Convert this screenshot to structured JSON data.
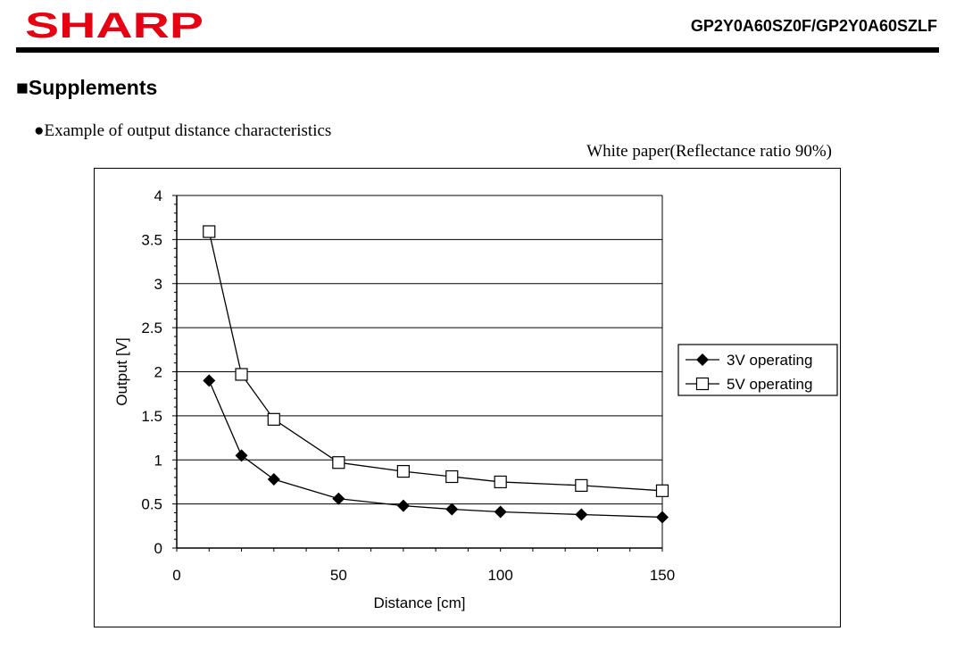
{
  "header": {
    "brand": "SHARP",
    "part_number": "GP2Y0A60SZ0F/GP2Y0A60SZLF",
    "brand_color": "#e60012"
  },
  "section": {
    "title": "■Supplements"
  },
  "figure": {
    "caption": "●Example of output distance characteristics",
    "condition": "White paper(Reflectance ratio 90%)"
  },
  "chart_data": {
    "type": "line",
    "xlabel": "Distance [cm]",
    "ylabel": "Output [V]",
    "xlim": [
      0,
      150
    ],
    "ylim": [
      0,
      4
    ],
    "x_ticks": [
      "0",
      "50",
      "100",
      "150"
    ],
    "y_ticks": [
      "0",
      "0.5",
      "1",
      "1.5",
      "2",
      "2.5",
      "3",
      "3.5",
      "4"
    ],
    "grid": "horizontal",
    "legend_position": "right",
    "series": [
      {
        "name": "3V operating",
        "marker": "filled-diamond",
        "x": [
          10,
          20,
          30,
          50,
          70,
          85,
          100,
          125,
          150
        ],
        "y": [
          1.9,
          1.05,
          0.78,
          0.56,
          0.48,
          0.44,
          0.41,
          0.38,
          0.35
        ]
      },
      {
        "name": "5V operating",
        "marker": "open-square",
        "x": [
          10,
          20,
          30,
          50,
          70,
          85,
          100,
          125,
          150
        ],
        "y": [
          3.59,
          1.97,
          1.46,
          0.97,
          0.87,
          0.81,
          0.75,
          0.71,
          0.65
        ]
      }
    ]
  }
}
